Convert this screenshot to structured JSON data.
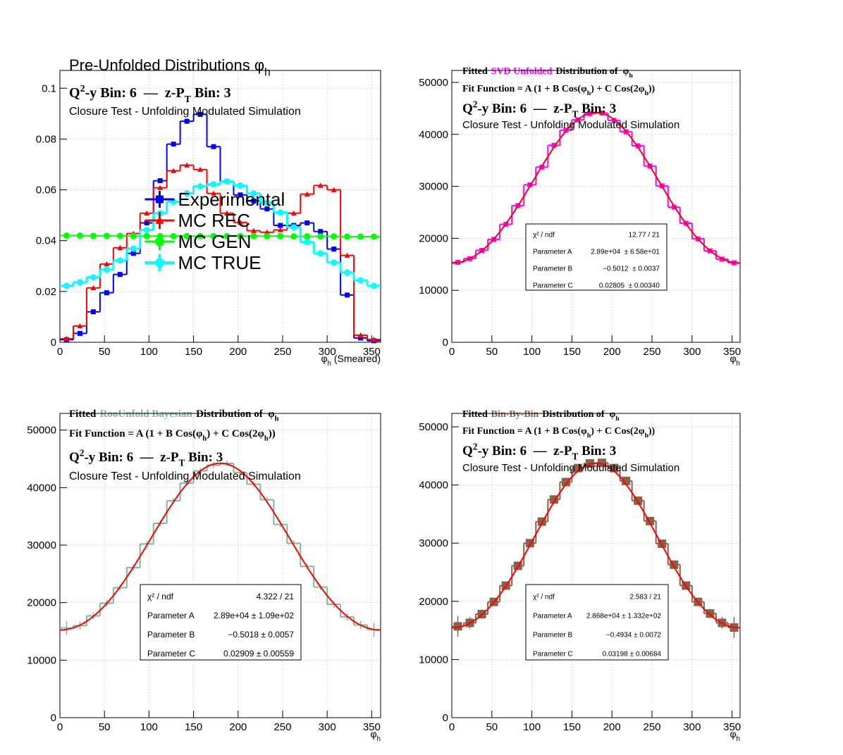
{
  "chart_data": [
    {
      "type": "histogram",
      "title": [
        "Pre-Unfolded Distributions φ",
        "h"
      ],
      "bin_label": [
        "Q",
        "2",
        "-y Bin: 6  —  z-P",
        "T",
        " Bin: 3"
      ],
      "subtitle": "Closure Test - Unfolding Modulated Simulation",
      "x_label": [
        "φ",
        "h",
        " (Smeared)"
      ],
      "bins": [
        0,
        15,
        30,
        45,
        60,
        75,
        90,
        105,
        120,
        135,
        150,
        165,
        180,
        195,
        210,
        225,
        240,
        255,
        270,
        285,
        300,
        315,
        330,
        345,
        360
      ],
      "xlim": [
        0,
        360
      ],
      "xticks": [
        0,
        50,
        100,
        150,
        200,
        250,
        300,
        350
      ],
      "ylim": [
        0,
        0.107
      ],
      "yticks": [
        0,
        0.02,
        0.04,
        0.06,
        0.08,
        0.1
      ],
      "grid": true,
      "legend": "center",
      "series": [
        {
          "name": "Experimental",
          "color": "#0000ff",
          "values": [
            0.001,
            0.0035,
            0.012,
            0.0195,
            0.0267,
            0.035,
            0.047,
            0.0636,
            0.078,
            0.087,
            0.0897,
            0.077,
            0.0633,
            0.058,
            0.0556,
            0.0525,
            0.046,
            0.046,
            0.047,
            0.0436,
            0.0367,
            0.0186,
            0.0017,
            0.0006
          ]
        },
        {
          "name": "MC REC",
          "color": "#ff0000",
          "values": [
            0.0014,
            0.0064,
            0.0214,
            0.0308,
            0.0372,
            0.0428,
            0.0508,
            0.0608,
            0.0675,
            0.0697,
            0.068,
            0.0586,
            0.0508,
            0.0472,
            0.0439,
            0.0433,
            0.0442,
            0.0508,
            0.0583,
            0.0617,
            0.06,
            0.0342,
            0.0028,
            0.0011
          ]
        },
        {
          "name": "MC GEN",
          "color": "#00ff00",
          "values": [
            0.042,
            0.042,
            0.0419,
            0.0419,
            0.0419,
            0.0418,
            0.0418,
            0.0418,
            0.0418,
            0.0418,
            0.0418,
            0.0418,
            0.0418,
            0.0418,
            0.0418,
            0.0418,
            0.0418,
            0.0417,
            0.0417,
            0.0417,
            0.0417,
            0.0416,
            0.0416,
            0.0416
          ]
        },
        {
          "name": "MC TRUE",
          "color": "#00ffff",
          "values": [
            0.0222,
            0.0236,
            0.0256,
            0.0286,
            0.0322,
            0.0369,
            0.0442,
            0.0508,
            0.0553,
            0.0586,
            0.0614,
            0.0622,
            0.0633,
            0.0617,
            0.0586,
            0.055,
            0.0511,
            0.0453,
            0.0394,
            0.035,
            0.0314,
            0.0275,
            0.0244,
            0.0222
          ]
        }
      ]
    },
    {
      "type": "histogram",
      "title": [
        "Fitted",
        "SVD Unfolded",
        "Distribution of  φ",
        "h"
      ],
      "fit_function": [
        "Fit Function = A (1 + B Cos(φ",
        "h",
        ") + C Cos(2φ",
        "h",
        "))"
      ],
      "bin_label": [
        "Q",
        "2",
        "-y Bin: 6  —  z-P",
        "T",
        " Bin: 3"
      ],
      "subtitle": "Closure Test - Unfolding Modulated Simulation",
      "x_label": [
        "φ",
        "h"
      ],
      "bins": [
        0,
        15,
        30,
        45,
        60,
        75,
        90,
        105,
        120,
        135,
        150,
        165,
        180,
        195,
        210,
        225,
        240,
        255,
        270,
        285,
        300,
        315,
        330,
        345,
        360
      ],
      "xlim": [
        0,
        360
      ],
      "xticks": [
        0,
        50,
        100,
        150,
        200,
        250,
        300,
        350
      ],
      "ylim": [
        0,
        52300
      ],
      "yticks": [
        0,
        10000,
        20000,
        30000,
        40000,
        50000
      ],
      "grid": true,
      "color": "#ff00ff",
      "fit_color": "#ff0000",
      "values": [
        15400,
        16100,
        17700,
        19800,
        22700,
        26300,
        30300,
        33700,
        37900,
        40800,
        42800,
        44000,
        44100,
        42700,
        40500,
        37800,
        33900,
        30100,
        26000,
        22900,
        19900,
        17600,
        16000,
        15300
      ],
      "stats": [
        {
          "name": "χ² / ndf",
          "label": "12.77 / 21"
        },
        {
          "name": "Parameter A",
          "value": 28900,
          "label": "2.89e+04  ± 6.58e+01"
        },
        {
          "name": "Parameter B",
          "value": -0.5012,
          "label": "−0.5012  ± 0.0037"
        },
        {
          "name": "Parameter C",
          "value": 0.02805,
          "label": "0.02805  ± 0.00340"
        }
      ]
    },
    {
      "type": "histogram",
      "title": [
        "Fitted",
        "RooUnfold Bayesian",
        "Distribution of  φ",
        "h"
      ],
      "fit_function": [
        "Fit Function = A (1 + B Cos(φ",
        "h",
        ") + C Cos(2φ",
        "h",
        "))"
      ],
      "bin_label": [
        "Q",
        "2",
        "-y Bin: 6  —  z-P",
        "T",
        " Bin: 3"
      ],
      "subtitle": "Closure Test - Unfolding Modulated Simulation",
      "x_label": [
        "φ",
        "h"
      ],
      "bins": [
        0,
        15,
        30,
        45,
        60,
        75,
        90,
        105,
        120,
        135,
        150,
        165,
        180,
        195,
        210,
        225,
        240,
        255,
        270,
        285,
        300,
        315,
        330,
        345,
        360
      ],
      "xlim": [
        0,
        360
      ],
      "xticks": [
        0,
        50,
        100,
        150,
        200,
        250,
        300,
        350
      ],
      "ylim": [
        0,
        52900
      ],
      "yticks": [
        0,
        10000,
        20000,
        30000,
        40000,
        50000
      ],
      "grid": true,
      "color": "#7fb79a",
      "fit_color": "#ff0000",
      "values": [
        15600,
        16000,
        17700,
        19900,
        22600,
        26100,
        30200,
        33800,
        37700,
        40800,
        42900,
        43900,
        44200,
        42600,
        40600,
        37900,
        33600,
        30300,
        26300,
        22700,
        19700,
        17500,
        16100,
        15300
      ],
      "errors": [
        1200,
        700,
        600,
        600,
        500,
        500,
        500,
        500,
        500,
        500,
        500,
        500,
        500,
        500,
        500,
        500,
        500,
        500,
        500,
        500,
        600,
        600,
        700,
        1200
      ],
      "stats": [
        {
          "name": "χ² / ndf",
          "label": "4.322 / 21"
        },
        {
          "name": "Parameter A",
          "value": 28900,
          "label": "2.89e+04 ± 1.09e+02"
        },
        {
          "name": "Parameter B",
          "value": -0.5018,
          "label": "−0.5018 ± 0.0057"
        },
        {
          "name": "Parameter C",
          "value": 0.02909,
          "label": "0.02909 ± 0.00559"
        }
      ]
    },
    {
      "type": "histogram",
      "title": [
        "Fitted",
        "Bin-By-Bin",
        "Distribution of  φ",
        "h"
      ],
      "fit_function": [
        "Fit Function = A (1 + B Cos(φ",
        "h",
        ") + C Cos(2φ",
        "h",
        "))"
      ],
      "bin_label": [
        "Q",
        "2",
        "-y Bin: 6  —  z-P",
        "T",
        " Bin: 3"
      ],
      "subtitle": "Closure Test - Unfolding Modulated Simulation",
      "x_label": [
        "φ",
        "h"
      ],
      "bins": [
        0,
        15,
        30,
        45,
        60,
        75,
        90,
        105,
        120,
        135,
        150,
        165,
        180,
        195,
        210,
        225,
        240,
        255,
        270,
        285,
        300,
        315,
        330,
        345,
        360
      ],
      "xlim": [
        0,
        360
      ],
      "xticks": [
        0,
        50,
        100,
        150,
        200,
        250,
        300,
        350
      ],
      "ylim": [
        0,
        52300
      ],
      "yticks": [
        0,
        10000,
        20000,
        30000,
        40000,
        50000
      ],
      "grid": true,
      "color": "#8c5f48",
      "fit_color": "#ff0000",
      "values": [
        15700,
        16300,
        17800,
        19900,
        22700,
        26100,
        30000,
        33700,
        37500,
        40500,
        42900,
        43700,
        43800,
        42900,
        40700,
        37300,
        33800,
        29900,
        26300,
        22700,
        19900,
        17900,
        16300,
        15500
      ],
      "errors": [
        1800,
        1000,
        800,
        700,
        600,
        600,
        600,
        600,
        600,
        600,
        600,
        600,
        600,
        600,
        600,
        600,
        600,
        600,
        600,
        600,
        700,
        800,
        1000,
        1800
      ],
      "stats": [
        {
          "name": "χ² / ndf",
          "label": "2.583 / 21"
        },
        {
          "name": "Parameter A",
          "value": 28680,
          "label": "2.868e+04 ± 1.332e+02"
        },
        {
          "name": "Parameter B",
          "value": -0.4934,
          "label": "−0.4934 ± 0.0072"
        },
        {
          "name": "Parameter C",
          "value": 0.03198,
          "label": "0.03198 ± 0.00684"
        }
      ]
    }
  ]
}
